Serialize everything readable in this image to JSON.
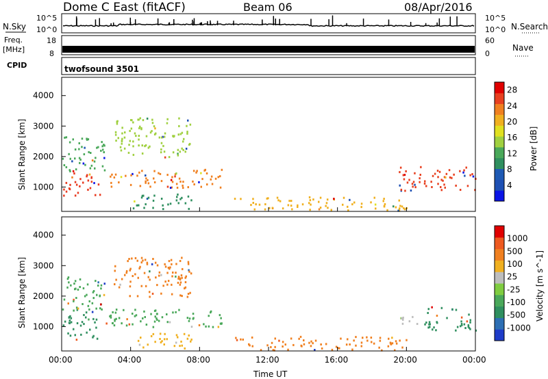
{
  "header": {
    "title": "Dome C East (fitACF)",
    "beam": "Beam 06",
    "date": "08/Apr/2016"
  },
  "sky_panel": {
    "left_label": "N.Sky",
    "right_label": "N.Search",
    "ytick_top": "10^5",
    "ytick_bottom": "10^0"
  },
  "freq_panel": {
    "label_top": "Freq.",
    "label_unit": "[MHz]",
    "ytick_top": "18",
    "ytick_bottom": "8",
    "right_label": "Nave",
    "right_tick_top": "60",
    "right_tick_bottom": "0"
  },
  "cpid_panel": {
    "label": "CPID",
    "program": "twofsound 3501"
  },
  "colors": {
    "background": "#ffffff",
    "ground_scatter": "#bdbdbd"
  },
  "chart_data": [
    {
      "type": "heatmap",
      "name_of_quantity": "power",
      "xlabel": "",
      "ylabel": "Slant Range [km]",
      "yticks": [
        "1000",
        "2000",
        "3000",
        "4000"
      ],
      "ylim": [
        200,
        4600
      ],
      "xlim_hours": [
        0,
        24
      ],
      "colorbar_label": "Power [dB]",
      "colorbar_ticks": [
        "4",
        "8",
        "12",
        "16",
        "20",
        "24",
        "28"
      ],
      "colorbar_colors": [
        "#0a14e6",
        "#1e50b4",
        "#1e5ab4",
        "#2f8f5f",
        "#4aa85a",
        "#a0d040",
        "#e0e020",
        "#f0b020",
        "#f08020",
        "#e84020",
        "#e00000"
      ],
      "regions": [
        {
          "t0": 0.0,
          "t1": 2.2,
          "r0": 700,
          "r1": 1500,
          "c": "#e83a20"
        },
        {
          "t0": 0.0,
          "t1": 2.5,
          "r0": 1500,
          "r1": 2700,
          "c": "#4aa85a"
        },
        {
          "t0": 2.5,
          "t1": 9.3,
          "r0": 1000,
          "r1": 1600,
          "c": "#f08020"
        },
        {
          "t0": 3.0,
          "t1": 7.5,
          "r0": 2000,
          "r1": 3300,
          "c": "#a0d040"
        },
        {
          "t0": 4.0,
          "t1": 7.5,
          "r0": 300,
          "r1": 800,
          "c": "#2f8f5f"
        },
        {
          "t0": 10.0,
          "t1": 20.0,
          "r0": 250,
          "r1": 700,
          "c": "#f0b020"
        },
        {
          "t0": 19.5,
          "t1": 24.0,
          "r0": 900,
          "r1": 1700,
          "c": "#e84020"
        }
      ]
    },
    {
      "type": "heatmap",
      "name_of_quantity": "velocity",
      "xlabel": "Time UT",
      "ylabel": "Slant Range [km]",
      "xticks": [
        "00:00",
        "04:00",
        "08:00",
        "12:00",
        "16:00",
        "20:00",
        "00:00"
      ],
      "yticks": [
        "1000",
        "2000",
        "3000",
        "4000"
      ],
      "ylim": [
        200,
        4600
      ],
      "xlim_hours": [
        0,
        24
      ],
      "colorbar_label": "Velocity [m s^-1]",
      "colorbar_ticks": [
        "1000",
        "500",
        "100",
        "25",
        "-25",
        "-100",
        "-500",
        "-1000"
      ],
      "colorbar_colors": [
        "#1e3cc8",
        "#2d6fb4",
        "#2f8f5f",
        "#4aa85a",
        "#7fcc40",
        "#bdbdbd",
        "#f0b020",
        "#f08020",
        "#ee5a20",
        "#e00000"
      ],
      "regions": [
        {
          "t0": 0.0,
          "t1": 2.2,
          "r0": 600,
          "r1": 1500,
          "c": "#2f8f5f"
        },
        {
          "t0": 0.0,
          "t1": 2.5,
          "r0": 1500,
          "r1": 2700,
          "c": "#4aa85a"
        },
        {
          "t0": 2.5,
          "t1": 9.3,
          "r0": 1000,
          "r1": 1600,
          "c": "#4aa85a"
        },
        {
          "t0": 3.0,
          "t1": 7.5,
          "r0": 2000,
          "r1": 3300,
          "c": "#f08020"
        },
        {
          "t0": 4.0,
          "t1": 7.5,
          "r0": 300,
          "r1": 800,
          "c": "#f0b020"
        },
        {
          "t0": 10.0,
          "t1": 20.0,
          "r0": 250,
          "r1": 700,
          "c": "#f08020"
        },
        {
          "t0": 19.5,
          "t1": 21.0,
          "r0": 1100,
          "r1": 1400,
          "c": "#bdbdbd"
        },
        {
          "t0": 21.0,
          "t1": 24.0,
          "r0": 900,
          "r1": 1700,
          "c": "#2f8f5f"
        }
      ]
    }
  ]
}
